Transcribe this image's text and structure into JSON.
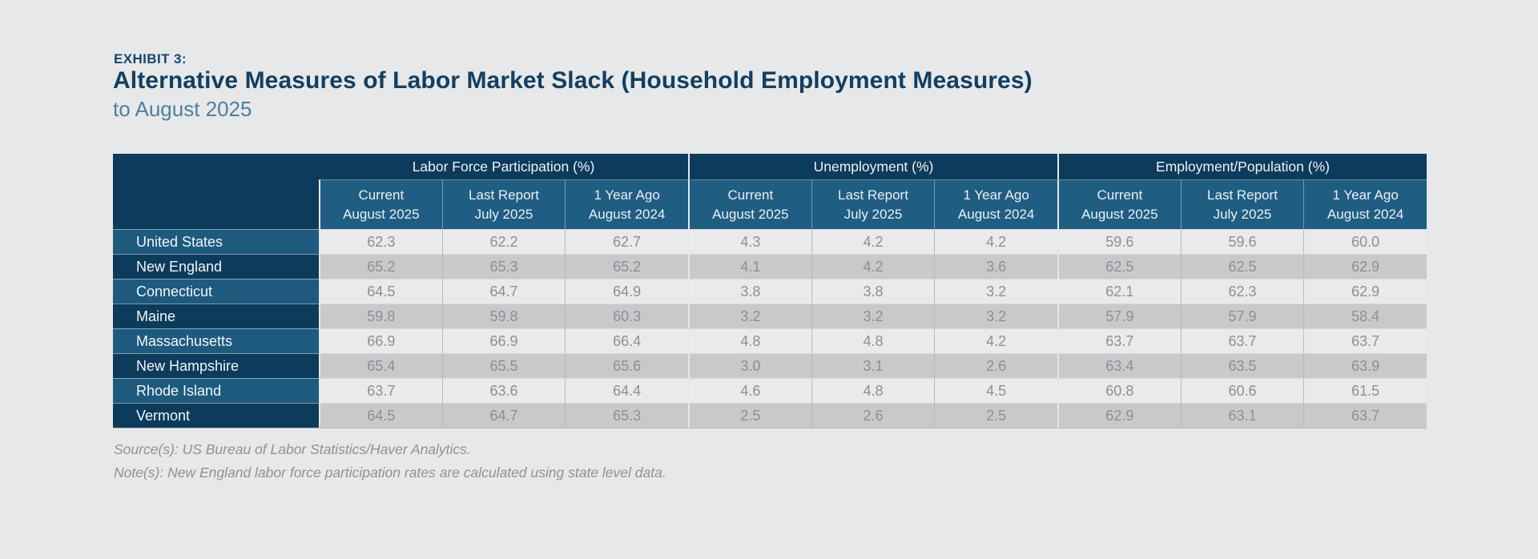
{
  "header": {
    "eyebrow": "EXHIBIT 3:",
    "title": "Alternative Measures of Labor Market Slack (Household Employment Measures)",
    "subtitle": "to August 2025"
  },
  "table": {
    "groups": [
      {
        "label": "Labor Force Participation (%)"
      },
      {
        "label": "Unemployment (%)"
      },
      {
        "label": "Employment/Population (%)"
      }
    ],
    "subheaders": [
      {
        "line1": "Current",
        "line2": "August 2025"
      },
      {
        "line1": "Last Report",
        "line2": "July 2025"
      },
      {
        "line1": "1 Year Ago",
        "line2": "August 2024"
      }
    ],
    "rows": [
      {
        "label": "United States",
        "values": [
          "62.3",
          "62.2",
          "62.7",
          "4.3",
          "4.2",
          "4.2",
          "59.6",
          "59.6",
          "60.0"
        ]
      },
      {
        "label": "New England",
        "values": [
          "65.2",
          "65.3",
          "65.2",
          "4.1",
          "4.2",
          "3.6",
          "62.5",
          "62.5",
          "62.9"
        ]
      },
      {
        "label": "Connecticut",
        "values": [
          "64.5",
          "64.7",
          "64.9",
          "3.8",
          "3.8",
          "3.2",
          "62.1",
          "62.3",
          "62.9"
        ]
      },
      {
        "label": "Maine",
        "values": [
          "59.8",
          "59.8",
          "60.3",
          "3.2",
          "3.2",
          "3.2",
          "57.9",
          "57.9",
          "58.4"
        ]
      },
      {
        "label": "Massachusetts",
        "values": [
          "66.9",
          "66.9",
          "66.4",
          "4.8",
          "4.8",
          "4.2",
          "63.7",
          "63.7",
          "63.7"
        ]
      },
      {
        "label": "New Hampshire",
        "values": [
          "65.4",
          "65.5",
          "65.6",
          "3.0",
          "3.1",
          "2.6",
          "63.4",
          "63.5",
          "63.9"
        ]
      },
      {
        "label": "Rhode Island",
        "values": [
          "63.7",
          "63.6",
          "64.4",
          "4.6",
          "4.8",
          "4.5",
          "60.8",
          "60.6",
          "61.5"
        ]
      },
      {
        "label": "Vermont",
        "values": [
          "64.5",
          "64.7",
          "65.3",
          "2.5",
          "2.6",
          "2.5",
          "62.9",
          "63.1",
          "63.7"
        ]
      }
    ]
  },
  "footer": {
    "source": "Source(s): US Bureau of Labor Statistics/Haver Analytics.",
    "note": "Note(s): New England labor force participation rates are calculated using state level data."
  },
  "colors": {
    "page_background": "#e7e8e9",
    "header_navy": "#0d3b5c",
    "subheader_blue": "#205d82",
    "row_label_light": "#1d5a7d",
    "row_label_dark": "#0d3b5c",
    "zebra_light": "#e9eaeb",
    "zebra_dark": "#c8c9cb",
    "title_navy": "#133f60",
    "subtitle_blue": "#4d7fa0",
    "value_text": "#8c8f93"
  },
  "chart_data": {
    "type": "table",
    "title": "EXHIBIT 3: Alternative Measures of Labor Market Slack (Household Employment Measures) to August 2025",
    "column_groups": [
      "Labor Force Participation (%)",
      "Unemployment (%)",
      "Employment/Population (%)"
    ],
    "columns_per_group": [
      "Current August 2025",
      "Last Report July 2025",
      "1 Year Ago August 2024"
    ],
    "row_labels": [
      "United States",
      "New England",
      "Connecticut",
      "Maine",
      "Massachusetts",
      "New Hampshire",
      "Rhode Island",
      "Vermont"
    ],
    "labor_force_participation": {
      "United States": [
        62.3,
        62.2,
        62.7
      ],
      "New England": [
        65.2,
        65.3,
        65.2
      ],
      "Connecticut": [
        64.5,
        64.7,
        64.9
      ],
      "Maine": [
        59.8,
        59.8,
        60.3
      ],
      "Massachusetts": [
        66.9,
        66.9,
        66.4
      ],
      "New Hampshire": [
        65.4,
        65.5,
        65.6
      ],
      "Rhode Island": [
        63.7,
        63.6,
        64.4
      ],
      "Vermont": [
        64.5,
        64.7,
        65.3
      ]
    },
    "unemployment": {
      "United States": [
        4.3,
        4.2,
        4.2
      ],
      "New England": [
        4.1,
        4.2,
        3.6
      ],
      "Connecticut": [
        3.8,
        3.8,
        3.2
      ],
      "Maine": [
        3.2,
        3.2,
        3.2
      ],
      "Massachusetts": [
        4.8,
        4.8,
        4.2
      ],
      "New Hampshire": [
        3.0,
        3.1,
        2.6
      ],
      "Rhode Island": [
        4.6,
        4.8,
        4.5
      ],
      "Vermont": [
        2.5,
        2.6,
        2.5
      ]
    },
    "employment_population": {
      "United States": [
        59.6,
        59.6,
        60.0
      ],
      "New England": [
        62.5,
        62.5,
        62.9
      ],
      "Connecticut": [
        62.1,
        62.3,
        62.9
      ],
      "Maine": [
        57.9,
        57.9,
        58.4
      ],
      "Massachusetts": [
        63.7,
        63.7,
        63.7
      ],
      "New Hampshire": [
        63.4,
        63.5,
        63.9
      ],
      "Rhode Island": [
        60.8,
        60.6,
        61.5
      ],
      "Vermont": [
        62.9,
        63.1,
        63.7
      ]
    },
    "source": "US Bureau of Labor Statistics/Haver Analytics",
    "note": "New England labor force participation rates are calculated using state level data."
  }
}
